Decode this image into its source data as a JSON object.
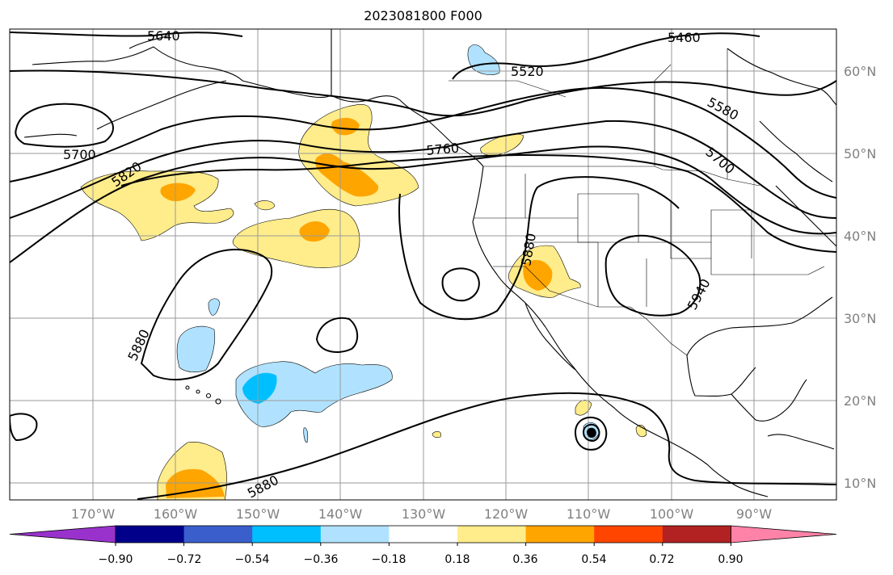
{
  "title": "2023081800 F000",
  "lon_labels": [
    "170°W",
    "160°W",
    "150°W",
    "140°W",
    "130°W",
    "120°W",
    "110°W",
    "100°W",
    "90°W"
  ],
  "lat_labels": [
    "60°N",
    "50°N",
    "40°N",
    "30°N",
    "20°N",
    "10°N"
  ],
  "contour_labels": [
    "5640",
    "5460",
    "5520",
    "5580",
    "5700",
    "5700",
    "5820",
    "5760",
    "5880",
    "5940",
    "5880",
    "5880"
  ],
  "colorbar": {
    "colors": [
      "#9932cc",
      "#00008b",
      "#3a5fcd",
      "#00bfff",
      "#b0e2ff",
      "#ffffff",
      "#ffec8b",
      "#ffa500",
      "#ff4500",
      "#b22222",
      "#ff83a8"
    ],
    "tick_labels": [
      "−0.90",
      "−0.72",
      "−0.54",
      "−0.36",
      "−0.18",
      "0.18",
      "0.36",
      "0.54",
      "0.72",
      "0.90"
    ]
  }
}
